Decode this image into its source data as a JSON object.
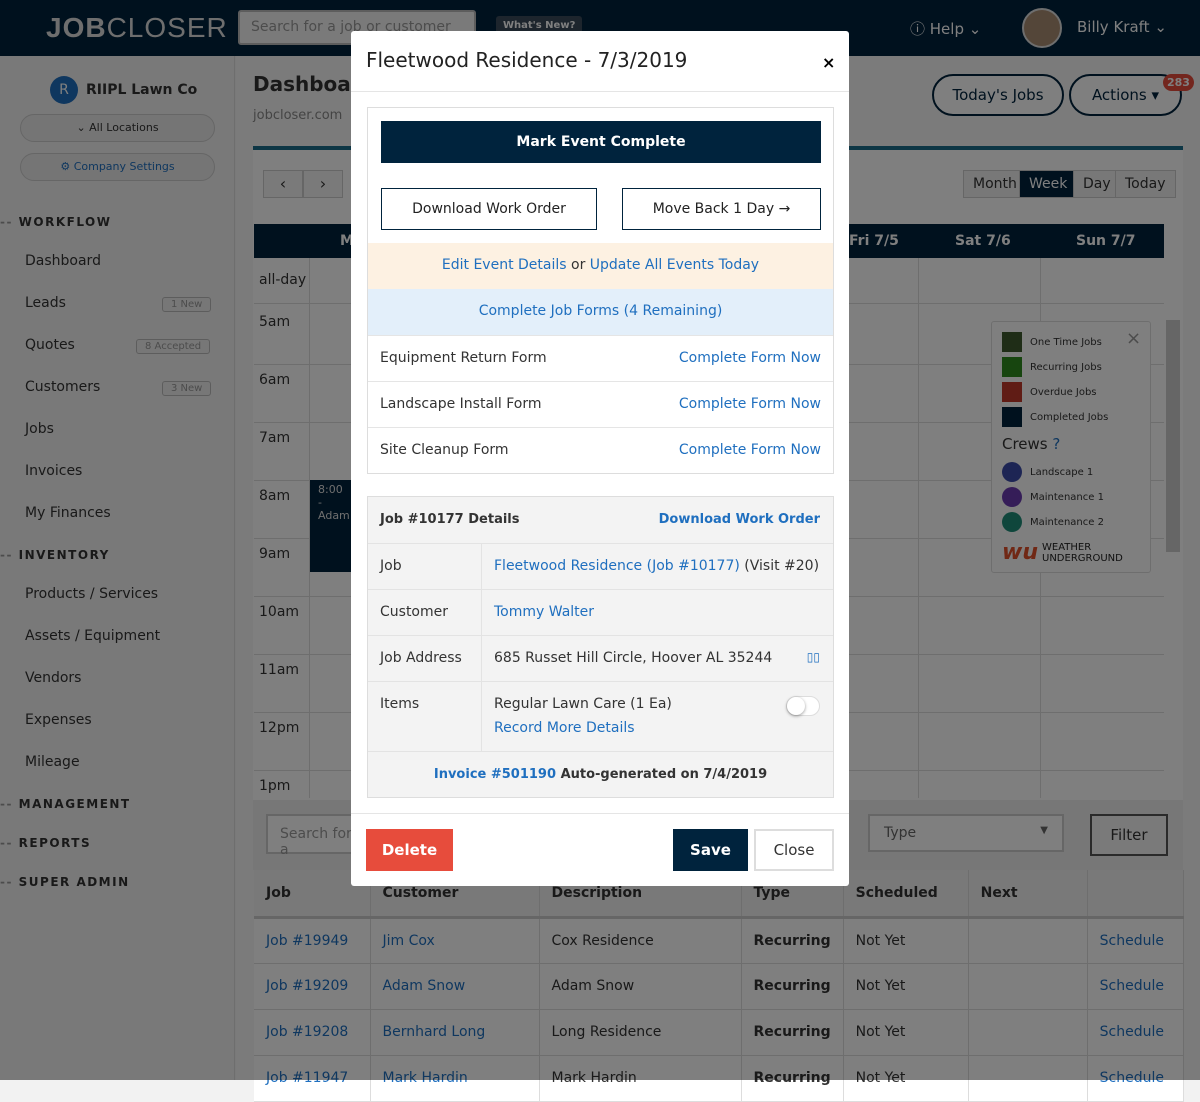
{
  "header": {
    "logo_bold": "JOB",
    "logo_rest": "CLOSER",
    "search_placeholder": "Search for a job or customer",
    "whats_new": "What's New?",
    "help": "Help",
    "user": "Billy Kraft"
  },
  "sidebar": {
    "company": "RIIPL Lawn Co",
    "company_initial": "R",
    "locations": "All Locations",
    "settings": "Company Settings",
    "sections": [
      {
        "label": "WORKFLOW"
      },
      {
        "label": "INVENTORY"
      },
      {
        "label": "MANAGEMENT"
      },
      {
        "label": "REPORTS"
      },
      {
        "label": "SUPER ADMIN"
      }
    ],
    "items": [
      {
        "label": "Dashboard"
      },
      {
        "label": "Leads",
        "badge": "1 New"
      },
      {
        "label": "Quotes",
        "badge": "8 Accepted"
      },
      {
        "label": "Customers",
        "badge": "3 New"
      },
      {
        "label": "Jobs"
      },
      {
        "label": "Invoices"
      },
      {
        "label": "My Finances"
      },
      {
        "label": "Products / Services"
      },
      {
        "label": "Assets / Equipment"
      },
      {
        "label": "Vendors"
      },
      {
        "label": "Expenses"
      },
      {
        "label": "Mileage"
      }
    ]
  },
  "page": {
    "title": "Dashboard",
    "breadcrumb": "jobcloser.com",
    "todays_jobs": "Today's Jobs",
    "actions": "Actions",
    "notif_count": "283"
  },
  "calendar": {
    "views": [
      "Month",
      "Week",
      "Day",
      "Today"
    ],
    "active_view": "Week",
    "days": [
      "Mon",
      "Fri 7/5",
      "Sat 7/6",
      "Sun 7/7"
    ],
    "allday": "all-day",
    "times": [
      "5am",
      "6am",
      "7am",
      "8am",
      "9am",
      "10am",
      "11am",
      "12pm",
      "1pm"
    ],
    "event_time": "8:00 -",
    "event_name": "Adam",
    "legend": {
      "types": [
        {
          "label": "One Time Jobs",
          "color": "#3e5a2e"
        },
        {
          "label": "Recurring Jobs",
          "color": "#2e8b1e"
        },
        {
          "label": "Overdue Jobs",
          "color": "#c0392b"
        },
        {
          "label": "Completed Jobs",
          "color": "#00233d"
        }
      ],
      "crews_title": "Crews",
      "crews": [
        {
          "label": "Landscape 1",
          "color": "#3a4aa8"
        },
        {
          "label": "Maintenance 1",
          "color": "#6a3ab0"
        },
        {
          "label": "Maintenance 2",
          "color": "#1e8c78"
        }
      ],
      "weather_line1": "WEATHER",
      "weather_line2": "UNDERGROUND"
    }
  },
  "jobs_table": {
    "search_placeholder": "Search for a",
    "type_placeholder": "Type",
    "filter": "Filter",
    "columns": [
      "Job",
      "Customer",
      "Description",
      "Type",
      "Scheduled",
      "Next",
      ""
    ],
    "rows": [
      [
        "Job #19949",
        "Jim Cox",
        "Cox Residence",
        "Recurring",
        "Not Yet",
        "",
        "Schedule"
      ],
      [
        "Job #19209",
        "Adam Snow",
        "Adam Snow",
        "Recurring",
        "Not Yet",
        "",
        "Schedule"
      ],
      [
        "Job #19208",
        "Bernhard Long",
        "Long Residence",
        "Recurring",
        "Not Yet",
        "",
        "Schedule"
      ],
      [
        "Job #11947",
        "Mark Hardin",
        "Mark Hardin",
        "Recurring",
        "Not Yet",
        "",
        "Schedule"
      ]
    ]
  },
  "modal": {
    "title": "Fleetwood Residence - 7/3/2019",
    "close": "×",
    "mark_complete": "Mark Event Complete",
    "download_work_order": "Download Work Order",
    "move_back": "Move Back 1 Day →",
    "edit_details": "Edit Event Details",
    "or": "or",
    "update_all": "Update All Events Today",
    "complete_forms": "Complete Job Forms (4 Remaining)",
    "forms": [
      {
        "name": "Equipment Return Form",
        "action": "Complete Form Now"
      },
      {
        "name": "Landscape Install Form",
        "action": "Complete Form Now"
      },
      {
        "name": "Site Cleanup Form",
        "action": "Complete Form Now"
      }
    ],
    "details": {
      "title": "Job #10177 Details",
      "download": "Download Work Order",
      "job_label": "Job",
      "job_link": "Fleetwood Residence (Job #10177)",
      "visit": "(Visit #20)",
      "customer_label": "Customer",
      "customer": "Tommy Walter",
      "address_label": "Job Address",
      "address": "685 Russet Hill Circle, Hoover AL 35244",
      "items_label": "Items",
      "item": "Regular Lawn Care (1 Ea)",
      "record_more": "Record More Details",
      "item_toggle_on": false,
      "invoice_link": "Invoice #501190",
      "invoice_text": "Auto-generated on 7/4/2019"
    },
    "delete": "Delete",
    "save": "Save",
    "close_btn": "Close"
  }
}
